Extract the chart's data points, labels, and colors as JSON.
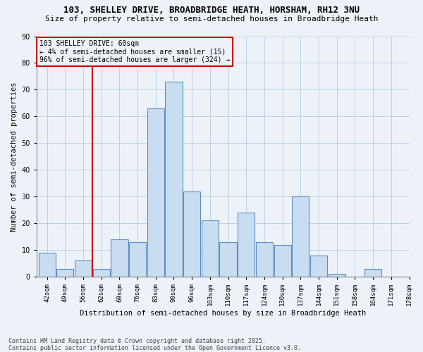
{
  "title": "103, SHELLEY DRIVE, BROADBRIDGE HEATH, HORSHAM, RH12 3NU",
  "subtitle": "Size of property relative to semi-detached houses in Broadbridge Heath",
  "xlabel": "Distribution of semi-detached houses by size in Broadbridge Heath",
  "ylabel": "Number of semi-detached properties",
  "bin_labels": [
    "42sqm",
    "49sqm",
    "56sqm",
    "62sqm",
    "69sqm",
    "76sqm",
    "83sqm",
    "90sqm",
    "96sqm",
    "103sqm",
    "110sqm",
    "117sqm",
    "124sqm",
    "130sqm",
    "137sqm",
    "144sqm",
    "151sqm",
    "158sqm",
    "164sqm",
    "171sqm",
    "178sqm"
  ],
  "heights": [
    9,
    3,
    6,
    3,
    14,
    13,
    63,
    73,
    32,
    21,
    13,
    24,
    13,
    12,
    30,
    8,
    1,
    0,
    3,
    0
  ],
  "bar_color": "#c8ddf0",
  "bar_edge_color": "#5b8ec4",
  "grid_color": "#b0c4d8",
  "bg_color": "#edf2f9",
  "vline_color": "#cc0000",
  "annotation_text": "103 SHELLEY DRIVE: 60sqm\n← 4% of semi-detached houses are smaller (15)\n96% of semi-detached houses are larger (324) →",
  "annotation_box_edgecolor": "#cc0000",
  "ylim": [
    0,
    90
  ],
  "yticks": [
    0,
    10,
    20,
    30,
    40,
    50,
    60,
    70,
    80,
    90
  ],
  "footer": "Contains HM Land Registry data © Crown copyright and database right 2025.\nContains public sector information licensed under the Open Government Licence v3.0."
}
